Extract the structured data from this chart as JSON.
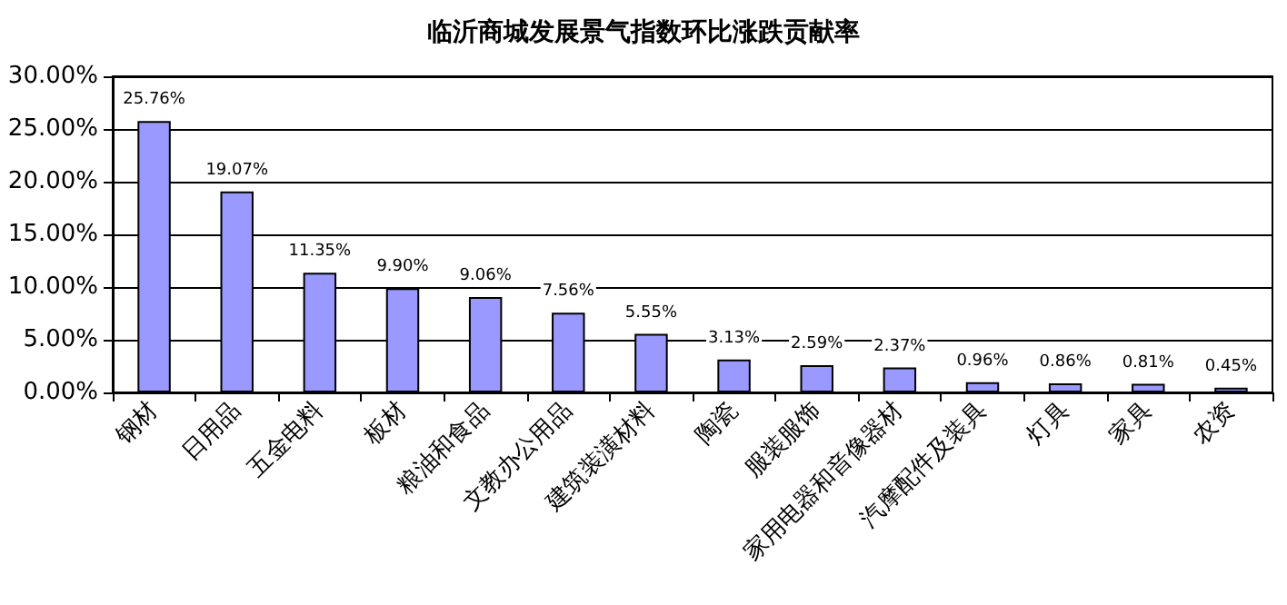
{
  "chart_data": {
    "type": "bar",
    "title": "临沂商城发展景气指数环比涨跌贡献率",
    "categories": [
      "钢材",
      "日用品",
      "五金电料",
      "板材",
      "粮油和食品",
      "文教办公用品",
      "建筑装潢材料",
      "陶瓷",
      "服装服饰",
      "家用电器和音像器材",
      "汽摩配件及装具",
      "灯具",
      "家具",
      "农资"
    ],
    "values": [
      25.76,
      19.07,
      11.35,
      9.9,
      9.06,
      7.56,
      5.55,
      3.13,
      2.59,
      2.37,
      0.96,
      0.86,
      0.81,
      0.45
    ],
    "value_labels": [
      "25.76%",
      "19.07%",
      "11.35%",
      "9.90%",
      "9.06%",
      "7.56%",
      "5.55%",
      "3.13%",
      "2.59%",
      "2.37%",
      "0.96%",
      "0.86%",
      "0.81%",
      "0.45%"
    ],
    "color": "#9999ff",
    "ylim": [
      0,
      30
    ],
    "yticks": [
      {
        "value": 0,
        "label": "0.00%"
      },
      {
        "value": 5,
        "label": "5.00%"
      },
      {
        "value": 10,
        "label": "10.00%"
      },
      {
        "value": 15,
        "label": "15.00%"
      },
      {
        "value": 20,
        "label": "20.00%"
      },
      {
        "value": 25,
        "label": "25.00%"
      },
      {
        "value": 30,
        "label": "30.00%"
      }
    ],
    "grid": "y"
  }
}
